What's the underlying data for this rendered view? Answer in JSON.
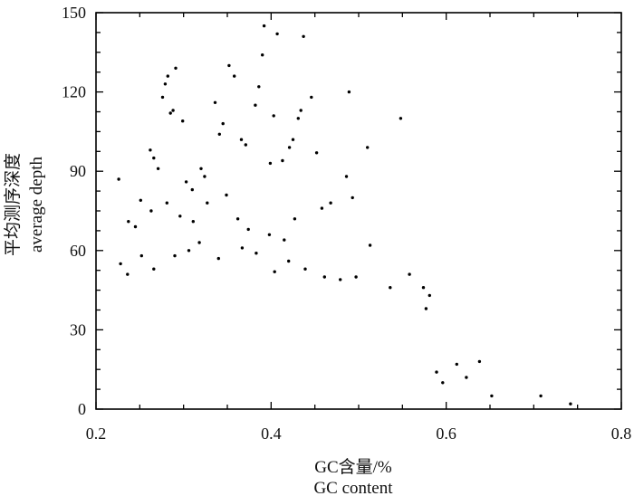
{
  "chart_data": {
    "type": "scatter",
    "title": "",
    "xlabel": [
      "GC含量/%",
      "GC content"
    ],
    "ylabel": [
      "平均测序深度",
      "average depth"
    ],
    "xlim": [
      0.2,
      0.8
    ],
    "ylim": [
      0,
      150
    ],
    "x_ticks": [
      "0.2",
      "0.4",
      "0.6",
      "0.8"
    ],
    "y_ticks": [
      "0",
      "30",
      "60",
      "90",
      "120",
      "150"
    ],
    "grid": false,
    "legend": "none",
    "marker_color": "#000000",
    "series": [
      {
        "points": [
          [
            0.226,
            87
          ],
          [
            0.237,
            71
          ],
          [
            0.245,
            69
          ],
          [
            0.251,
            79
          ],
          [
            0.262,
            98
          ],
          [
            0.266,
            95
          ],
          [
            0.271,
            91
          ],
          [
            0.276,
            118
          ],
          [
            0.279,
            123
          ],
          [
            0.282,
            126
          ],
          [
            0.285,
            112
          ],
          [
            0.288,
            113
          ],
          [
            0.291,
            129
          ],
          [
            0.299,
            109
          ],
          [
            0.303,
            86
          ],
          [
            0.31,
            83
          ],
          [
            0.32,
            91
          ],
          [
            0.324,
            88
          ],
          [
            0.336,
            116
          ],
          [
            0.341,
            104
          ],
          [
            0.345,
            108
          ],
          [
            0.352,
            130
          ],
          [
            0.358,
            126
          ],
          [
            0.366,
            102
          ],
          [
            0.371,
            100
          ],
          [
            0.382,
            115
          ],
          [
            0.386,
            122
          ],
          [
            0.39,
            134
          ],
          [
            0.392,
            145
          ],
          [
            0.399,
            93
          ],
          [
            0.403,
            111
          ],
          [
            0.407,
            142
          ],
          [
            0.413,
            94
          ],
          [
            0.421,
            99
          ],
          [
            0.425,
            102
          ],
          [
            0.431,
            110
          ],
          [
            0.434,
            113
          ],
          [
            0.437,
            141
          ],
          [
            0.446,
            118
          ],
          [
            0.452,
            97
          ],
          [
            0.468,
            78
          ],
          [
            0.486,
            88
          ],
          [
            0.489,
            120
          ],
          [
            0.493,
            80
          ],
          [
            0.51,
            99
          ],
          [
            0.548,
            110
          ],
          [
            0.263,
            75
          ],
          [
            0.281,
            78
          ],
          [
            0.296,
            73
          ],
          [
            0.311,
            71
          ],
          [
            0.327,
            78
          ],
          [
            0.349,
            81
          ],
          [
            0.362,
            72
          ],
          [
            0.374,
            68
          ],
          [
            0.398,
            66
          ],
          [
            0.415,
            64
          ],
          [
            0.427,
            72
          ],
          [
            0.458,
            76
          ],
          [
            0.228,
            55
          ],
          [
            0.236,
            51
          ],
          [
            0.252,
            58
          ],
          [
            0.266,
            53
          ],
          [
            0.29,
            58
          ],
          [
            0.306,
            60
          ],
          [
            0.318,
            63
          ],
          [
            0.34,
            57
          ],
          [
            0.367,
            61
          ],
          [
            0.383,
            59
          ],
          [
            0.404,
            52
          ],
          [
            0.42,
            56
          ],
          [
            0.439,
            53
          ],
          [
            0.461,
            50
          ],
          [
            0.479,
            49
          ],
          [
            0.497,
            50
          ],
          [
            0.513,
            62
          ],
          [
            0.536,
            46
          ],
          [
            0.558,
            51
          ],
          [
            0.577,
            38
          ],
          [
            0.581,
            43
          ],
          [
            0.574,
            46
          ],
          [
            0.589,
            14
          ],
          [
            0.596,
            10
          ],
          [
            0.612,
            17
          ],
          [
            0.623,
            12
          ],
          [
            0.638,
            18
          ],
          [
            0.652,
            5
          ],
          [
            0.708,
            5
          ],
          [
            0.742,
            2
          ]
        ]
      }
    ]
  }
}
